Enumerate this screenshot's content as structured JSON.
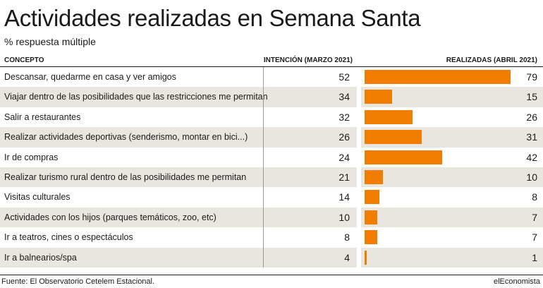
{
  "title": "Actividades realizadas en Semana Santa",
  "subtitle": "% respuesta múltiple",
  "footer": {
    "source": "Fuente: El Observatorio Cetelem Estacional.",
    "brand": "elEconomista"
  },
  "colors": {
    "bar": "#f07c00",
    "row_shade": "#e9e6df"
  },
  "chart_data": {
    "type": "table",
    "columns": [
      "CONCEPTO",
      "INTENCIÓN (MARZO 2021)",
      "REALIZADAS (ABRIL 2021)"
    ],
    "bar_column": "REALIZADAS (ABRIL 2021)",
    "bar_max": 79,
    "rows": [
      {
        "concept": "Descansar, quedarme en casa y ver amigos",
        "intention": 52,
        "realized": 79
      },
      {
        "concept": "Viajar dentro de las posibilidades que las restricciones me permitan",
        "intention": 34,
        "realized": 15
      },
      {
        "concept": "Salir a restaurantes",
        "intention": 32,
        "realized": 26
      },
      {
        "concept": "Realizar actividades deportivas (senderismo, montar en bici...)",
        "intention": 26,
        "realized": 31
      },
      {
        "concept": "Ir de compras",
        "intention": 24,
        "realized": 42
      },
      {
        "concept": "Realizar turismo rural dentro de las posibilidades me permitan",
        "intention": 21,
        "realized": 10
      },
      {
        "concept": "Visitas culturales",
        "intention": 14,
        "realized": 8
      },
      {
        "concept": "Actividades con los hijos (parques temáticos, zoo, etc)",
        "intention": 10,
        "realized": 7
      },
      {
        "concept": "Ir a teatros, cines o espectáculos",
        "intention": 8,
        "realized": 7
      },
      {
        "concept": "Ir a balnearios/spa",
        "intention": 4,
        "realized": 1
      }
    ]
  }
}
